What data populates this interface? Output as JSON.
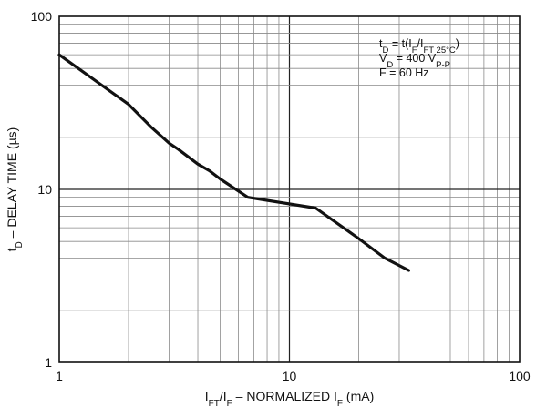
{
  "chart_data": {
    "type": "line",
    "x_scale": "log",
    "y_scale": "log",
    "xlim": [
      1,
      100
    ],
    "ylim": [
      1,
      100
    ],
    "grid": true,
    "x_ticks": [
      "1",
      "10",
      "100"
    ],
    "y_ticks": [
      "1",
      "10",
      "100"
    ],
    "xlabel": {
      "parts": [
        {
          "t": "I",
          "s": "n"
        },
        {
          "t": "FT",
          "s": "sub"
        },
        {
          "t": "/I",
          "s": "n"
        },
        {
          "t": "F",
          "s": "sub"
        },
        {
          "t": " – NORMALIZED I",
          "s": "n"
        },
        {
          "t": "F",
          "s": "sub"
        },
        {
          "t": " (mA)",
          "s": "n"
        }
      ]
    },
    "ylabel": {
      "parts": [
        {
          "t": "t",
          "s": "n"
        },
        {
          "t": "D",
          "s": "sub"
        },
        {
          "t": " – DELAY TIME (µs)",
          "s": "n"
        }
      ]
    },
    "annotation_lines": [
      [
        {
          "t": "t",
          "s": "n"
        },
        {
          "t": "D",
          "s": "sub"
        },
        {
          "t": " = t(I",
          "s": "n"
        },
        {
          "t": "F",
          "s": "sub"
        },
        {
          "t": "/I",
          "s": "n"
        },
        {
          "t": "FT 25°C",
          "s": "sub"
        },
        {
          "t": ")",
          "s": "n"
        }
      ],
      [
        {
          "t": "V",
          "s": "n"
        },
        {
          "t": "D",
          "s": "sub"
        },
        {
          "t": " = 400 V",
          "s": "n"
        },
        {
          "t": "P-P",
          "s": "sub"
        }
      ],
      [
        {
          "t": "F = 60 Hz",
          "s": "n"
        }
      ]
    ],
    "series": [
      {
        "x": [
          1,
          2,
          2.5,
          3,
          3.3,
          4,
          4.5,
          5,
          6.6,
          13,
          20,
          26,
          33
        ],
        "y": [
          60,
          31,
          23,
          18.5,
          17,
          14,
          12.8,
          11.5,
          9,
          7.8,
          5.2,
          4,
          3.4
        ]
      }
    ]
  }
}
